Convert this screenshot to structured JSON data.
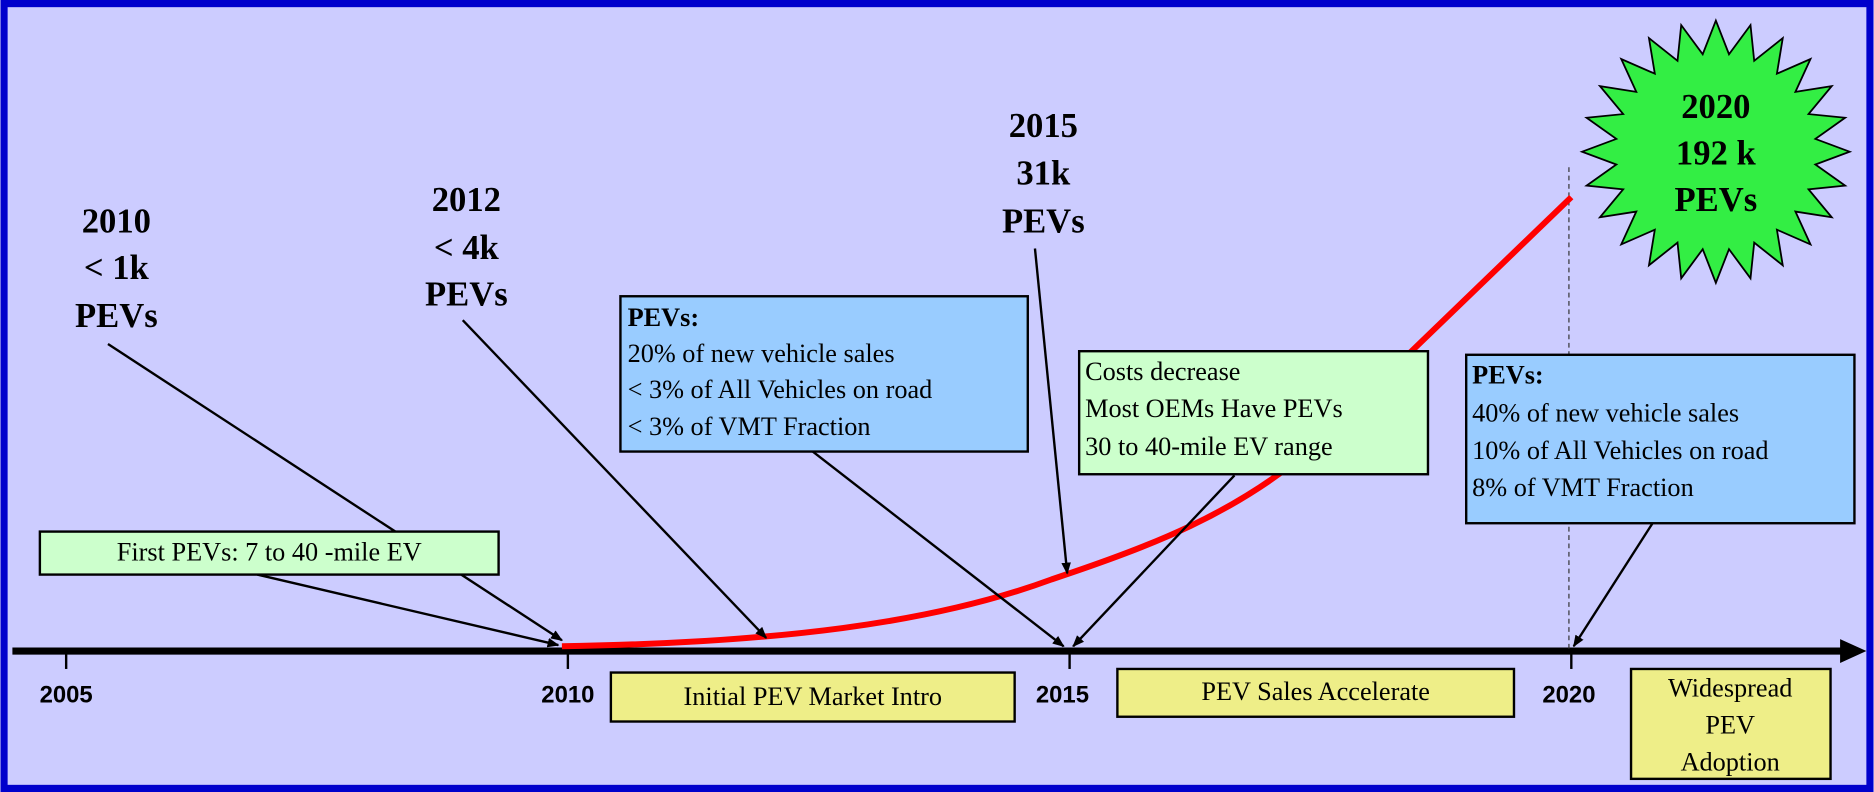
{
  "timeline": {
    "ticks": [
      "2005",
      "2010",
      "2015",
      "2020"
    ]
  },
  "milestones": [
    {
      "lines": [
        "2010",
        "< 1k",
        "PEVs"
      ]
    },
    {
      "lines": [
        "2012",
        "< 4k",
        "PEVs"
      ]
    },
    {
      "lines": [
        "2015",
        "31k",
        "PEVs"
      ]
    }
  ],
  "starburst": {
    "lines": [
      "2020",
      "192 k",
      "PEVs"
    ]
  },
  "notes": [
    {
      "lines": [
        "First PEVs: 7 to 40 -mile EV"
      ]
    },
    {
      "title": "PEVs:",
      "lines": [
        "20% of new vehicle sales",
        "< 3% of All Vehicles on road",
        "< 3% of VMT Fraction"
      ]
    },
    {
      "lines": [
        "Costs decrease",
        "Most OEMs Have PEVs",
        "30 to 40-mile EV range"
      ]
    },
    {
      "title": "PEVs:",
      "lines": [
        "40% of new vehicle sales",
        "10% of All Vehicles on road",
        "8% of VMT Fraction"
      ]
    }
  ],
  "phases": [
    {
      "lines": [
        "Initial PEV Market Intro"
      ]
    },
    {
      "lines": [
        "PEV Sales Accelerate"
      ]
    },
    {
      "lines": [
        "Widespread",
        "PEV",
        "Adoption"
      ]
    }
  ]
}
